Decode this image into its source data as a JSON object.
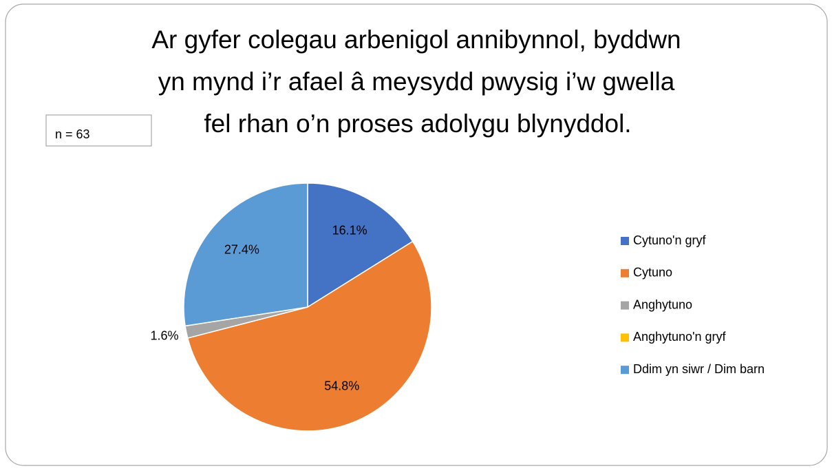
{
  "chart_data": {
    "type": "pie",
    "title": [
      "Ar gyfer colegau arbenigol annibynnol, byddwn",
      "yn mynd i’r afael â meysydd pwysig i’w gwella",
      "fel rhan o’n proses adolygu blynyddol."
    ],
    "annotation": "n = 63",
    "categories": [
      "Cytuno'n gryf",
      "Cytuno",
      "Anghytuno",
      "Anghytuno'n gryf",
      "Ddim yn siwr / Dim barn"
    ],
    "values": [
      16.1,
      54.8,
      1.6,
      0,
      27.4
    ],
    "value_labels": [
      "16.1%",
      "54.8%",
      "1.6%",
      null,
      "27.4%"
    ],
    "colors": [
      "#4472c4",
      "#ed7d31",
      "#a5a5a5",
      "#ffc000",
      "#5b9bd5"
    ],
    "legend": "right"
  }
}
